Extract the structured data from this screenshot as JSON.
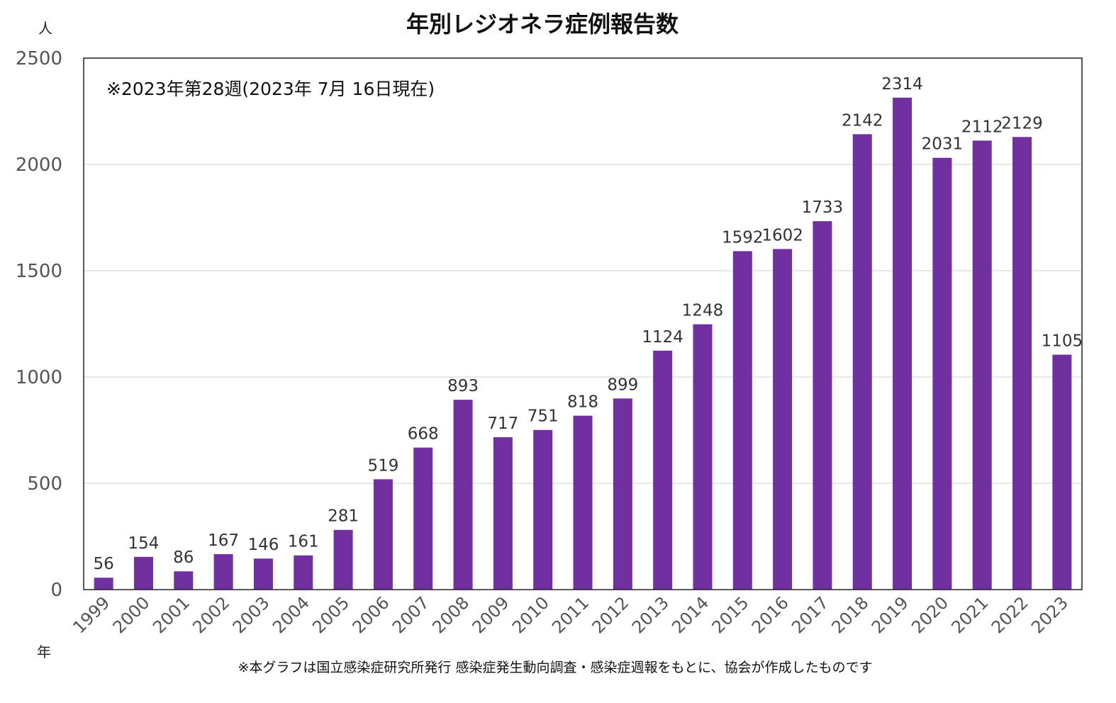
{
  "chart_data": {
    "type": "bar",
    "title": "年別レジオネラ症例報告数",
    "y_unit": "人",
    "x_unit": "年",
    "annotation": "※2023年第28週(2023年 7月 16日現在)",
    "footnote": "※本グラフは国立感染症研究所発行 感染症発生動向調査・感染症週報をもとに、協会が作成したものです",
    "categories": [
      "1999",
      "2000",
      "2001",
      "2002",
      "2003",
      "2004",
      "2005",
      "2006",
      "2007",
      "2008",
      "2009",
      "2010",
      "2011",
      "2012",
      "2013",
      "2014",
      "2015",
      "2016",
      "2017",
      "2018",
      "2019",
      "2020",
      "2021",
      "2022",
      "2023"
    ],
    "values": [
      56,
      154,
      86,
      167,
      146,
      161,
      281,
      519,
      668,
      893,
      717,
      751,
      818,
      899,
      1124,
      1248,
      1592,
      1602,
      1733,
      2142,
      2314,
      2031,
      2112,
      2129,
      1105
    ],
    "yticks": [
      0,
      500,
      1000,
      1500,
      2000,
      2500
    ],
    "ylim": [
      0,
      2500
    ],
    "bar_color": "#7030a0",
    "grid": true
  }
}
